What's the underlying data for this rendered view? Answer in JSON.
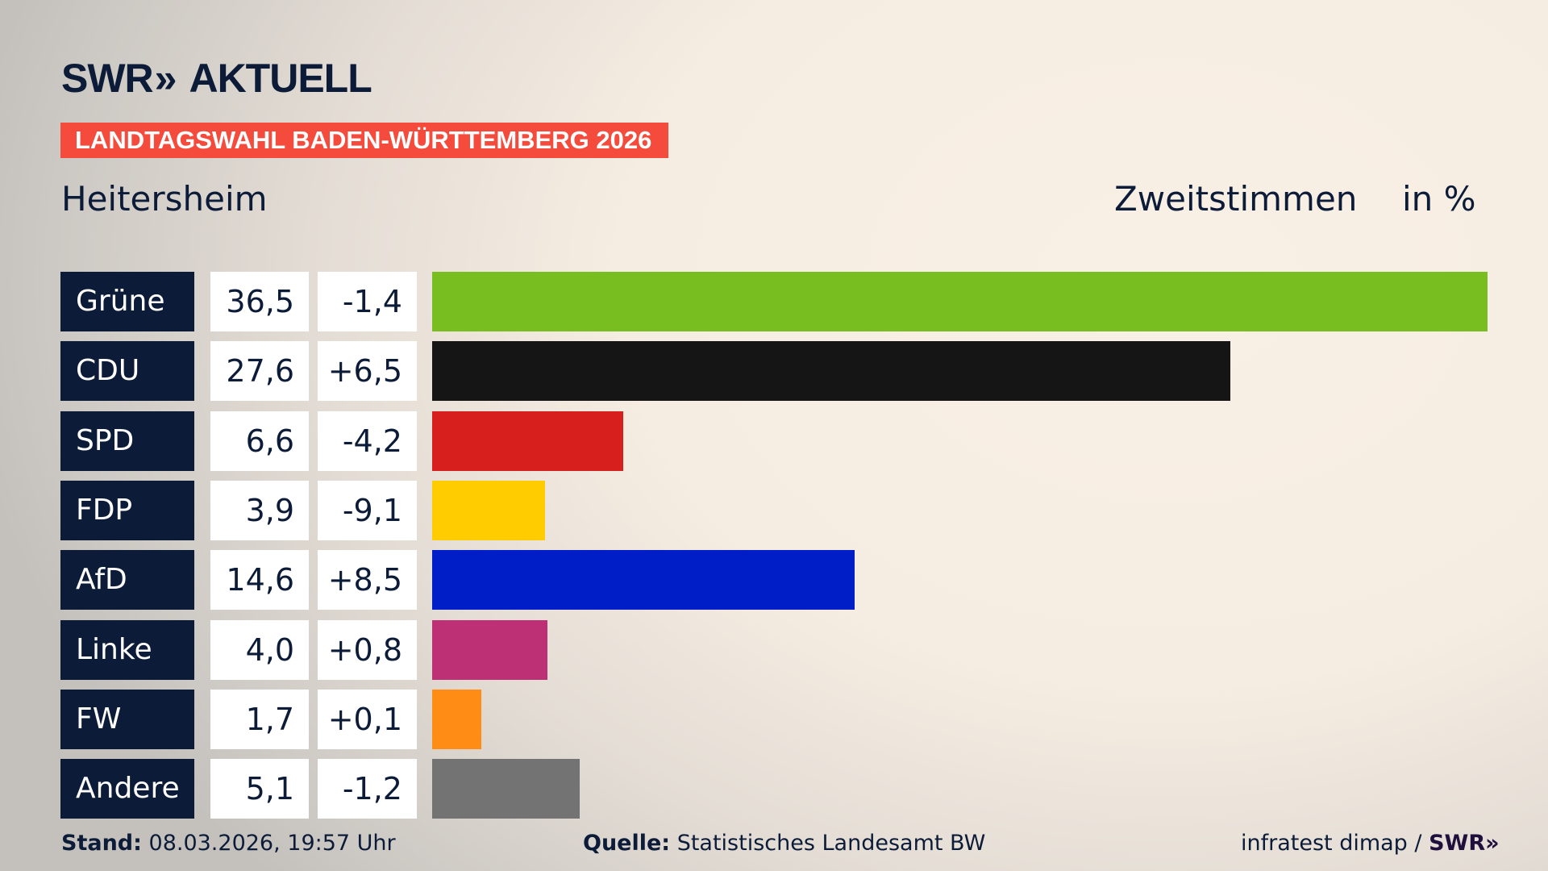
{
  "brand": {
    "logo": "SWR» AKTUELL",
    "logo_swr": "SWR",
    "logo_aktuell": "AKTUELL"
  },
  "banner": "LANDTAGSWAHL BADEN-WÜRTTEMBERG 2026",
  "place": "Heitersheim",
  "measure": "Zweitstimmen",
  "unit": "in %",
  "chart_data": {
    "type": "bar",
    "orientation": "horizontal",
    "categories": [
      "Grüne",
      "CDU",
      "SPD",
      "FDP",
      "AfD",
      "Linke",
      "FW",
      "Andere"
    ],
    "values": [
      36.5,
      27.6,
      6.6,
      3.9,
      14.6,
      4.0,
      1.7,
      5.1
    ],
    "value_labels": [
      "36,5",
      "27,6",
      "6,6",
      "3,9",
      "14,6",
      "4,0",
      "1,7",
      "5,1"
    ],
    "change_labels": [
      "-1,4",
      "+6,5",
      "-4,2",
      "-9,1",
      "+8,5",
      "+0,8",
      "+0,1",
      "-1,2"
    ],
    "changes": [
      -1.4,
      6.5,
      -4.2,
      -9.1,
      8.5,
      0.8,
      0.1,
      -1.2
    ],
    "colors": [
      "#78be20",
      "#151515",
      "#d71f1d",
      "#ffcc00",
      "#001ec8",
      "#be3075",
      "#ff8c14",
      "#737373"
    ],
    "xlim": [
      0,
      36.5
    ],
    "grid": false
  },
  "footer": {
    "stand_label": "Stand:",
    "stand_value": "08.03.2026, 19:57 Uhr",
    "source_label": "Quelle:",
    "source_value": "Statistisches Landesamt BW",
    "credit": "infratest dimap /",
    "credit_brand": "SWR»"
  }
}
